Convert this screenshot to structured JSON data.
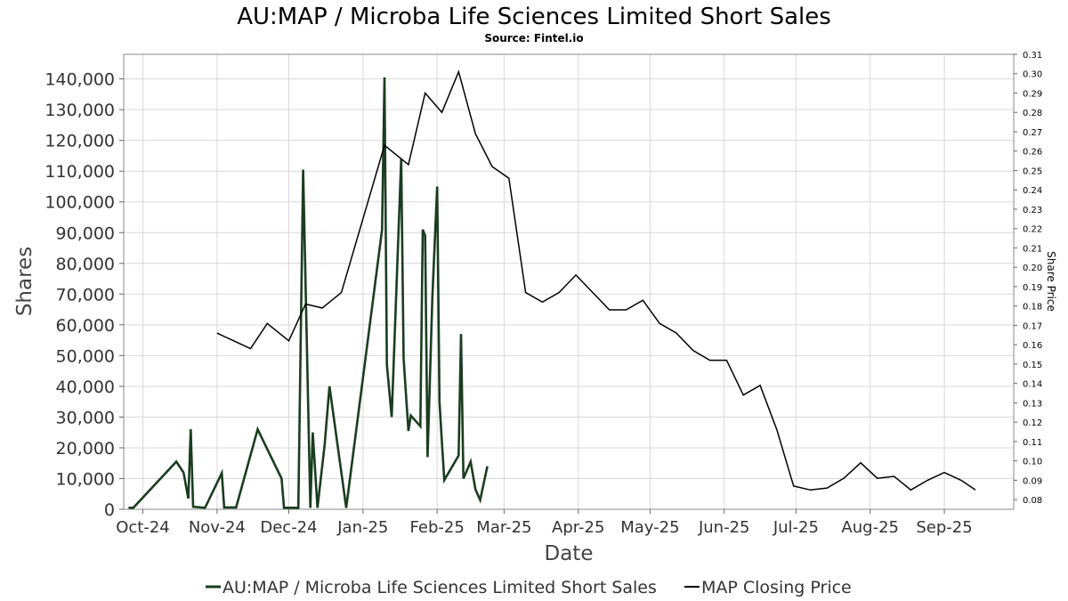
{
  "chart_data": {
    "type": "line",
    "title": "AU:MAP / Microba Life Sciences Limited Short Sales",
    "subtitle": "Source: Fintel.io",
    "xlabel": "Date",
    "ylabel": "Shares",
    "y2label": "Share Price",
    "xlim": [
      "2024-09-23",
      "2025-09-30"
    ],
    "ylim": [
      0,
      148000
    ],
    "y2lim": [
      0.075,
      0.31
    ],
    "grid": true,
    "legend_position": "bottom",
    "x_ticks": [
      "Oct-24",
      "Nov-24",
      "Dec-24",
      "Jan-25",
      "Feb-25",
      "Mar-25",
      "Apr-25",
      "May-25",
      "Jun-25",
      "Jul-25",
      "Aug-25",
      "Sep-25"
    ],
    "x_tick_dates": [
      "2024-10-01",
      "2024-11-01",
      "2024-12-01",
      "2025-01-01",
      "2025-02-01",
      "2025-03-01",
      "2025-04-01",
      "2025-05-01",
      "2025-06-01",
      "2025-07-01",
      "2025-08-01",
      "2025-09-01"
    ],
    "y_ticks": [
      "0",
      "10,000",
      "20,000",
      "30,000",
      "40,000",
      "50,000",
      "60,000",
      "70,000",
      "80,000",
      "90,000",
      "100,000",
      "110,000",
      "120,000",
      "130,000",
      "140,000"
    ],
    "y_tick_values": [
      0,
      10000,
      20000,
      30000,
      40000,
      50000,
      60000,
      70000,
      80000,
      90000,
      100000,
      110000,
      120000,
      130000,
      140000
    ],
    "y2_ticks": [
      "0.08",
      "0.09",
      "0.10",
      "0.11",
      "0.12",
      "0.13",
      "0.14",
      "0.15",
      "0.16",
      "0.17",
      "0.18",
      "0.19",
      "0.20",
      "0.21",
      "0.22",
      "0.23",
      "0.24",
      "0.25",
      "0.26",
      "0.27",
      "0.28",
      "0.29",
      "0.30",
      "0.31"
    ],
    "y2_tick_values": [
      0.08,
      0.09,
      0.1,
      0.11,
      0.12,
      0.13,
      0.14,
      0.15,
      0.16,
      0.17,
      0.18,
      0.19,
      0.2,
      0.21,
      0.22,
      0.23,
      0.24,
      0.25,
      0.26,
      0.27,
      0.28,
      0.29,
      0.3,
      0.31
    ],
    "series": [
      {
        "name": "AU:MAP / Microba Life Sciences Limited Short Sales",
        "axis": "left",
        "color": "#1a3d1f",
        "points": [
          [
            "2024-09-25",
            500
          ],
          [
            "2024-09-27",
            500
          ],
          [
            "2024-10-15",
            15500
          ],
          [
            "2024-10-18",
            12000
          ],
          [
            "2024-10-20",
            3500
          ],
          [
            "2024-10-21",
            26000
          ],
          [
            "2024-10-22",
            800
          ],
          [
            "2024-10-27",
            500
          ],
          [
            "2024-11-03",
            11800
          ],
          [
            "2024-11-04",
            600
          ],
          [
            "2024-11-09",
            600
          ],
          [
            "2024-11-18",
            26000
          ],
          [
            "2024-11-28",
            10000
          ],
          [
            "2024-11-29",
            500
          ],
          [
            "2024-12-05",
            500
          ],
          [
            "2024-12-07",
            110500
          ],
          [
            "2024-12-10",
            500
          ],
          [
            "2024-12-11",
            25000
          ],
          [
            "2024-12-13",
            500
          ],
          [
            "2024-12-16",
            21000
          ],
          [
            "2024-12-18",
            40000
          ],
          [
            "2024-12-25",
            500
          ],
          [
            "2025-01-09",
            91000
          ],
          [
            "2025-01-10",
            140500
          ],
          [
            "2025-01-11",
            47000
          ],
          [
            "2025-01-13",
            30000
          ],
          [
            "2025-01-17",
            114000
          ],
          [
            "2025-01-18",
            49000
          ],
          [
            "2025-01-20",
            25500
          ],
          [
            "2025-01-21",
            30500
          ],
          [
            "2025-01-25",
            27000
          ],
          [
            "2025-01-26",
            91000
          ],
          [
            "2025-01-27",
            89000
          ],
          [
            "2025-01-28",
            17000
          ],
          [
            "2025-01-30",
            69000
          ],
          [
            "2025-02-01",
            105000
          ],
          [
            "2025-02-02",
            35000
          ],
          [
            "2025-02-03",
            22000
          ],
          [
            "2025-02-04",
            9500
          ],
          [
            "2025-02-10",
            17500
          ],
          [
            "2025-02-11",
            57000
          ],
          [
            "2025-02-12",
            10000
          ],
          [
            "2025-02-15",
            15500
          ],
          [
            "2025-02-17",
            6500
          ],
          [
            "2025-02-19",
            3000
          ],
          [
            "2025-02-22",
            14000
          ]
        ]
      },
      {
        "name": "MAP Closing Price",
        "axis": "right",
        "color": "#000000",
        "points": [
          [
            "2024-11-01",
            0.166
          ],
          [
            "2024-11-15",
            0.158
          ],
          [
            "2024-11-22",
            0.171
          ],
          [
            "2024-12-01",
            0.162
          ],
          [
            "2024-12-08",
            0.181
          ],
          [
            "2024-12-15",
            0.179
          ],
          [
            "2024-12-23",
            0.187
          ],
          [
            "2025-01-10",
            0.263
          ],
          [
            "2025-01-20",
            0.253
          ],
          [
            "2025-01-27",
            0.29
          ],
          [
            "2025-02-03",
            0.28
          ],
          [
            "2025-02-10",
            0.301
          ],
          [
            "2025-02-17",
            0.269
          ],
          [
            "2025-02-24",
            0.252
          ],
          [
            "2025-03-03",
            0.246
          ],
          [
            "2025-03-10",
            0.187
          ],
          [
            "2025-03-17",
            0.182
          ],
          [
            "2025-03-24",
            0.187
          ],
          [
            "2025-03-31",
            0.196
          ],
          [
            "2025-04-14",
            0.178
          ],
          [
            "2025-04-21",
            0.178
          ],
          [
            "2025-04-28",
            0.183
          ],
          [
            "2025-05-05",
            0.171
          ],
          [
            "2025-05-12",
            0.166
          ],
          [
            "2025-05-19",
            0.157
          ],
          [
            "2025-05-26",
            0.152
          ],
          [
            "2025-06-02",
            0.152
          ],
          [
            "2025-06-09",
            0.134
          ],
          [
            "2025-06-16",
            0.139
          ],
          [
            "2025-06-23",
            0.116
          ],
          [
            "2025-06-30",
            0.087
          ],
          [
            "2025-07-07",
            0.085
          ],
          [
            "2025-07-14",
            0.086
          ],
          [
            "2025-07-21",
            0.091
          ],
          [
            "2025-07-28",
            0.099
          ],
          [
            "2025-08-04",
            0.091
          ],
          [
            "2025-08-11",
            0.092
          ],
          [
            "2025-08-18",
            0.085
          ],
          [
            "2025-08-25",
            0.09
          ],
          [
            "2025-09-01",
            0.094
          ],
          [
            "2025-09-08",
            0.09
          ],
          [
            "2025-09-14",
            0.085
          ]
        ]
      }
    ]
  }
}
